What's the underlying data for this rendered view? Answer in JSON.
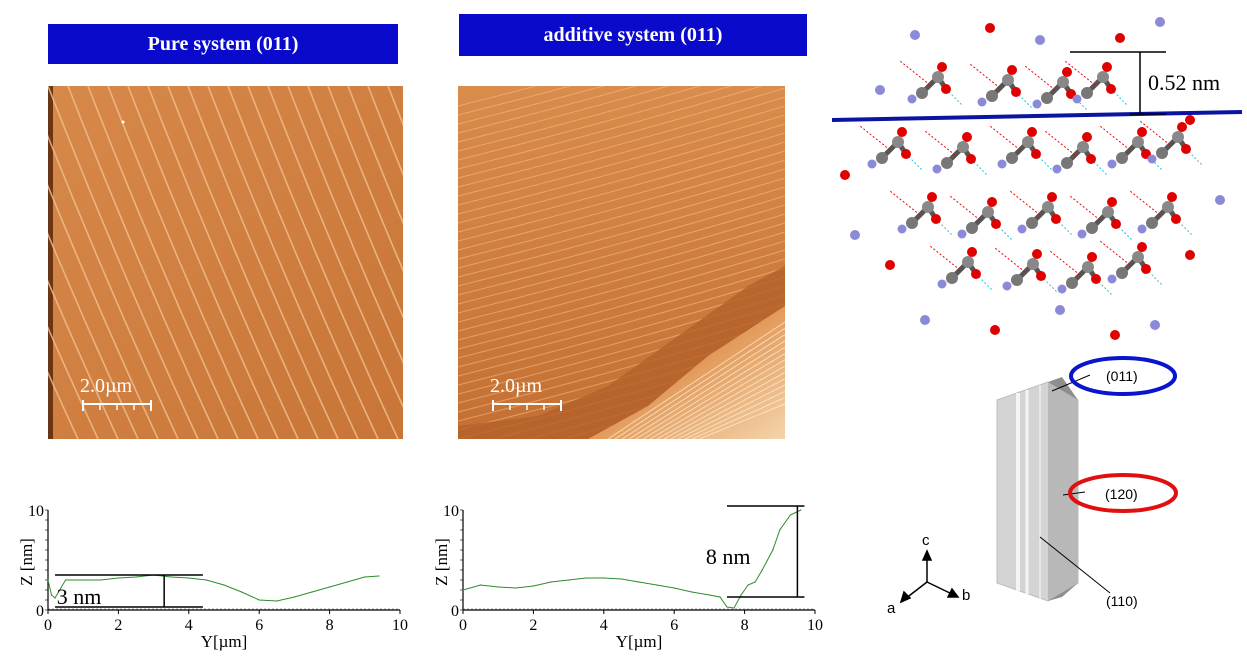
{
  "panels": {
    "pure": {
      "title": "Pure system (011)",
      "scale_label": "2.0µm"
    },
    "additive": {
      "title": "additive system (011)",
      "scale_label": "2.0µm"
    }
  },
  "molecule": {
    "step_height_label": "0.52 nm"
  },
  "crystal": {
    "faces": {
      "top": "(011)",
      "side": "(120)",
      "bottom": "(110)"
    },
    "axes": {
      "c": "c",
      "a": "a",
      "b": "b"
    }
  },
  "chart_data": [
    {
      "type": "line",
      "title": "",
      "xlabel": "Y[µm]",
      "ylabel": "Z [nm]",
      "xlim": [
        0,
        10
      ],
      "ylim": [
        0,
        10
      ],
      "xticks": [
        "0",
        "2",
        "4",
        "6",
        "8",
        "10"
      ],
      "yticks": [
        "0",
        "10"
      ],
      "annotation": "3 nm",
      "series": [
        {
          "color": "#2e8b2e",
          "x": [
            0,
            0.1,
            0.2,
            0.5,
            1.0,
            1.5,
            2.0,
            2.5,
            3.0,
            3.5,
            4.0,
            4.5,
            5.0,
            5.5,
            6.0,
            6.5,
            7.0,
            7.5,
            8.0,
            8.5,
            9.0,
            9.4
          ],
          "y": [
            3.0,
            1.5,
            1.2,
            3.0,
            3.0,
            3.0,
            3.2,
            3.3,
            3.5,
            3.3,
            3.2,
            3.0,
            2.5,
            1.8,
            1.0,
            0.9,
            1.3,
            1.8,
            2.3,
            2.8,
            3.3,
            3.4
          ]
        }
      ]
    },
    {
      "type": "line",
      "title": "",
      "xlabel": "Y[µm]",
      "ylabel": "Z [nm]",
      "xlim": [
        0,
        10
      ],
      "ylim": [
        0,
        10
      ],
      "xticks": [
        "0",
        "2",
        "4",
        "6",
        "8",
        "10"
      ],
      "yticks": [
        "0",
        "10"
      ],
      "annotation": "8 nm",
      "series": [
        {
          "color": "#2e8b2e",
          "x": [
            0,
            0.5,
            1.0,
            1.5,
            2.0,
            2.5,
            3.0,
            3.5,
            4.0,
            4.5,
            5.0,
            5.5,
            6.0,
            6.5,
            7.0,
            7.3,
            7.5,
            7.7,
            7.9,
            8.1,
            8.3,
            8.5,
            8.8,
            9.0,
            9.3,
            9.6
          ],
          "y": [
            2.0,
            2.5,
            2.3,
            2.2,
            2.4,
            2.8,
            3.0,
            3.2,
            3.2,
            3.1,
            2.8,
            2.5,
            2.2,
            1.8,
            1.5,
            1.3,
            0.3,
            0.2,
            1.5,
            2.5,
            2.8,
            4.0,
            6.0,
            8.0,
            9.5,
            10.0
          ]
        }
      ]
    }
  ]
}
